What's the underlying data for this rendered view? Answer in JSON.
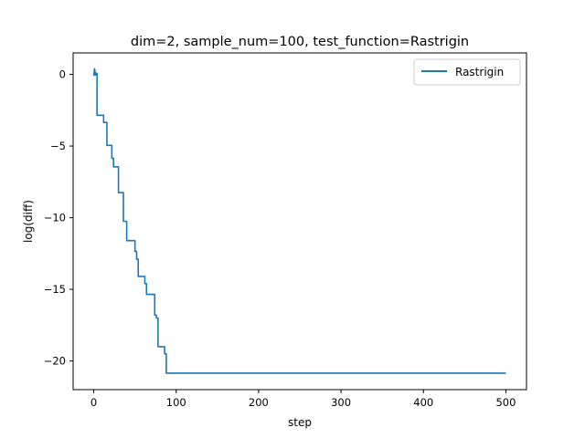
{
  "chart_data": {
    "type": "line",
    "title": "dim=2, sample_num=100, test_function=Rastrigin",
    "xlabel": "step",
    "ylabel": "log(diff)",
    "xlim": [
      -25,
      525
    ],
    "ylim": [
      -22,
      1.5
    ],
    "xticks": [
      0,
      100,
      200,
      300,
      400,
      500
    ],
    "xtick_labels": [
      "0",
      "100",
      "200",
      "300",
      "400",
      "500"
    ],
    "yticks": [
      0,
      -5,
      -10,
      -15,
      -20
    ],
    "ytick_labels": [
      "0",
      "−5",
      "−10",
      "−15",
      "−20"
    ],
    "grid": false,
    "legend_position": "top-right",
    "series": [
      {
        "name": "Rastrigin",
        "color": "#1f77b4",
        "x": [
          0,
          1,
          2,
          3,
          4,
          4,
          8,
          8,
          12,
          12,
          14,
          14,
          16,
          16,
          22,
          22,
          24,
          24,
          26,
          26,
          30,
          30,
          32,
          32,
          36,
          36,
          38,
          38,
          40,
          40,
          42,
          42,
          50,
          50,
          52,
          52,
          54,
          54,
          56,
          56,
          62,
          62,
          64,
          64,
          68,
          68,
          74,
          74,
          76,
          76,
          78,
          78,
          80,
          80,
          86,
          86,
          88,
          88,
          500
        ],
        "y": [
          -0.1,
          0.4,
          -0.05,
          0.1,
          0.05,
          -2.85,
          -2.85,
          -2.85,
          -2.85,
          -3.35,
          -3.35,
          -3.35,
          -3.35,
          -4.95,
          -4.95,
          -5.85,
          -5.85,
          -6.45,
          -6.45,
          -6.45,
          -6.45,
          -8.25,
          -8.25,
          -8.25,
          -8.25,
          -10.25,
          -10.25,
          -10.25,
          -10.25,
          -11.6,
          -11.6,
          -11.6,
          -11.6,
          -12.35,
          -12.35,
          -12.9,
          -12.9,
          -14.1,
          -14.1,
          -14.1,
          -14.1,
          -14.6,
          -14.6,
          -15.35,
          -15.35,
          -15.35,
          -15.35,
          -16.8,
          -16.8,
          -17.0,
          -17.0,
          -19.0,
          -19.0,
          -19.0,
          -19.0,
          -19.5,
          -19.5,
          -20.85,
          -20.85
        ]
      }
    ]
  }
}
